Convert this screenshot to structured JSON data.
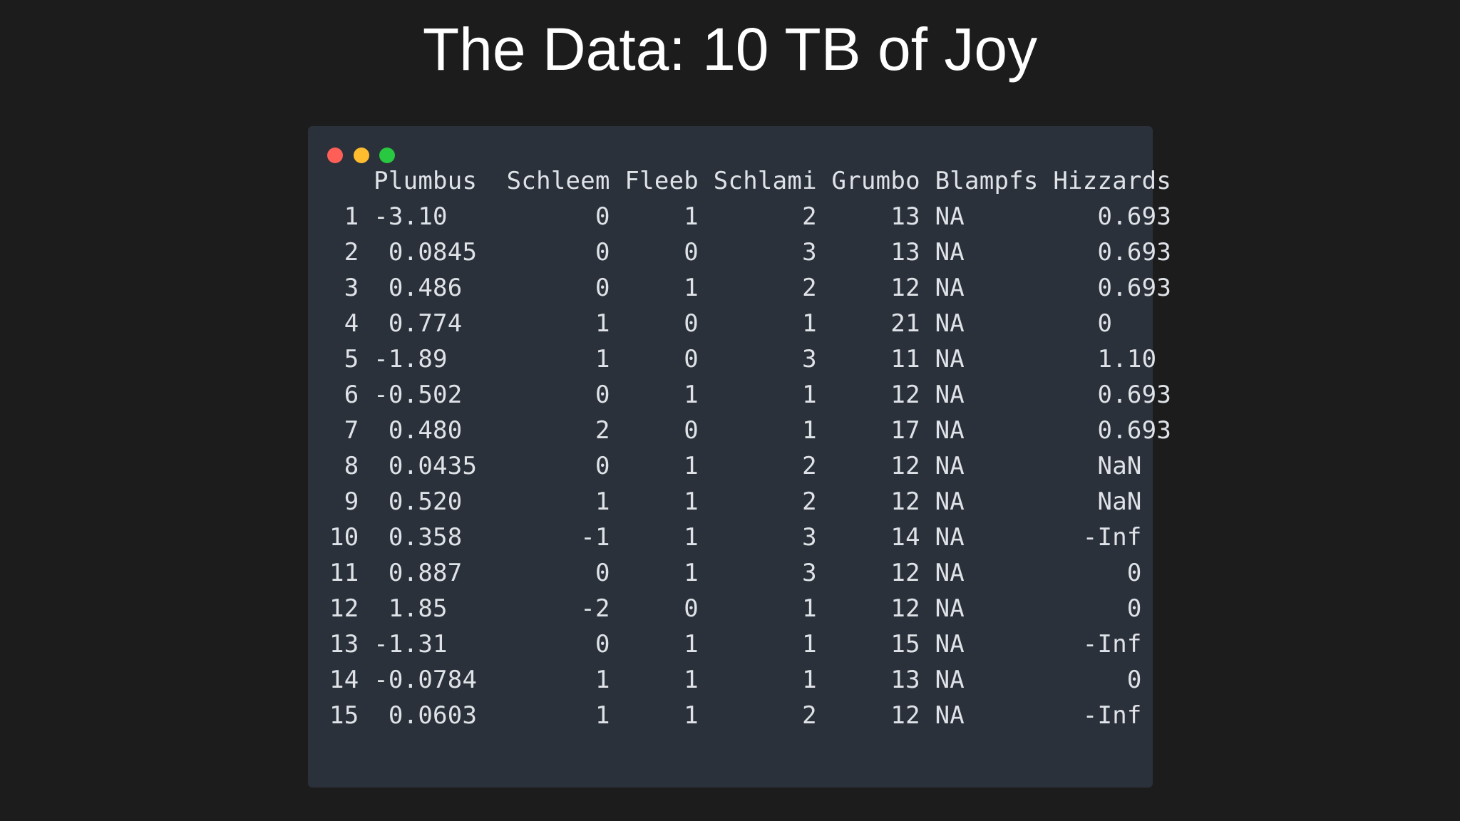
{
  "title": "The Data: 10 TB of Joy",
  "terminal": {
    "dot_colors": {
      "red": "#ff5f57",
      "yellow": "#febc2e",
      "green": "#28c840"
    },
    "columns": [
      "Plumbus",
      "Schleem",
      "Fleeb",
      "Schlami",
      "Grumbo",
      "Blampfs",
      "Hizzards"
    ],
    "rows": [
      {
        "idx": "1",
        "plumbus": "-3.10",
        "schleem": "0",
        "fleeb": "1",
        "schlami": "2",
        "grumbo": "13",
        "blampfs": "NA",
        "hizzards": "0.693"
      },
      {
        "idx": "2",
        "plumbus": " 0.0845",
        "schleem": "0",
        "fleeb": "0",
        "schlami": "3",
        "grumbo": "13",
        "blampfs": "NA",
        "hizzards": "0.693"
      },
      {
        "idx": "3",
        "plumbus": " 0.486",
        "schleem": "0",
        "fleeb": "1",
        "schlami": "2",
        "grumbo": "12",
        "blampfs": "NA",
        "hizzards": "0.693"
      },
      {
        "idx": "4",
        "plumbus": " 0.774",
        "schleem": "1",
        "fleeb": "0",
        "schlami": "1",
        "grumbo": "21",
        "blampfs": "NA",
        "hizzards": "0    "
      },
      {
        "idx": "5",
        "plumbus": "-1.89",
        "schleem": "1",
        "fleeb": "0",
        "schlami": "3",
        "grumbo": "11",
        "blampfs": "NA",
        "hizzards": "1.10 "
      },
      {
        "idx": "6",
        "plumbus": "-0.502",
        "schleem": "0",
        "fleeb": "1",
        "schlami": "1",
        "grumbo": "12",
        "blampfs": "NA",
        "hizzards": "0.693"
      },
      {
        "idx": "7",
        "plumbus": " 0.480",
        "schleem": "2",
        "fleeb": "0",
        "schlami": "1",
        "grumbo": "17",
        "blampfs": "NA",
        "hizzards": "0.693"
      },
      {
        "idx": "8",
        "plumbus": " 0.0435",
        "schleem": "0",
        "fleeb": "1",
        "schlami": "2",
        "grumbo": "12",
        "blampfs": "NA",
        "hizzards": "NaN  "
      },
      {
        "idx": "9",
        "plumbus": " 0.520",
        "schleem": "1",
        "fleeb": "1",
        "schlami": "2",
        "grumbo": "12",
        "blampfs": "NA",
        "hizzards": "NaN  "
      },
      {
        "idx": "10",
        "plumbus": " 0.358",
        "schleem": "-1",
        "fleeb": "1",
        "schlami": "3",
        "grumbo": "14",
        "blampfs": "NA",
        "hizzards": "-Inf  "
      },
      {
        "idx": "11",
        "plumbus": " 0.887",
        "schleem": "0",
        "fleeb": "1",
        "schlami": "3",
        "grumbo": "12",
        "blampfs": "NA",
        "hizzards": "   0  "
      },
      {
        "idx": "12",
        "plumbus": " 1.85",
        "schleem": "-2",
        "fleeb": "0",
        "schlami": "1",
        "grumbo": "12",
        "blampfs": "NA",
        "hizzards": "   0  "
      },
      {
        "idx": "13",
        "plumbus": "-1.31",
        "schleem": "0",
        "fleeb": "1",
        "schlami": "1",
        "grumbo": "15",
        "blampfs": "NA",
        "hizzards": "-Inf  "
      },
      {
        "idx": "14",
        "plumbus": "-0.0784",
        "schleem": "1",
        "fleeb": "1",
        "schlami": "1",
        "grumbo": "13",
        "blampfs": "NA",
        "hizzards": "   0  "
      },
      {
        "idx": "15",
        "plumbus": " 0.0603",
        "schleem": "1",
        "fleeb": "1",
        "schlami": "2",
        "grumbo": "12",
        "blampfs": "NA",
        "hizzards": "-Inf  "
      }
    ]
  }
}
